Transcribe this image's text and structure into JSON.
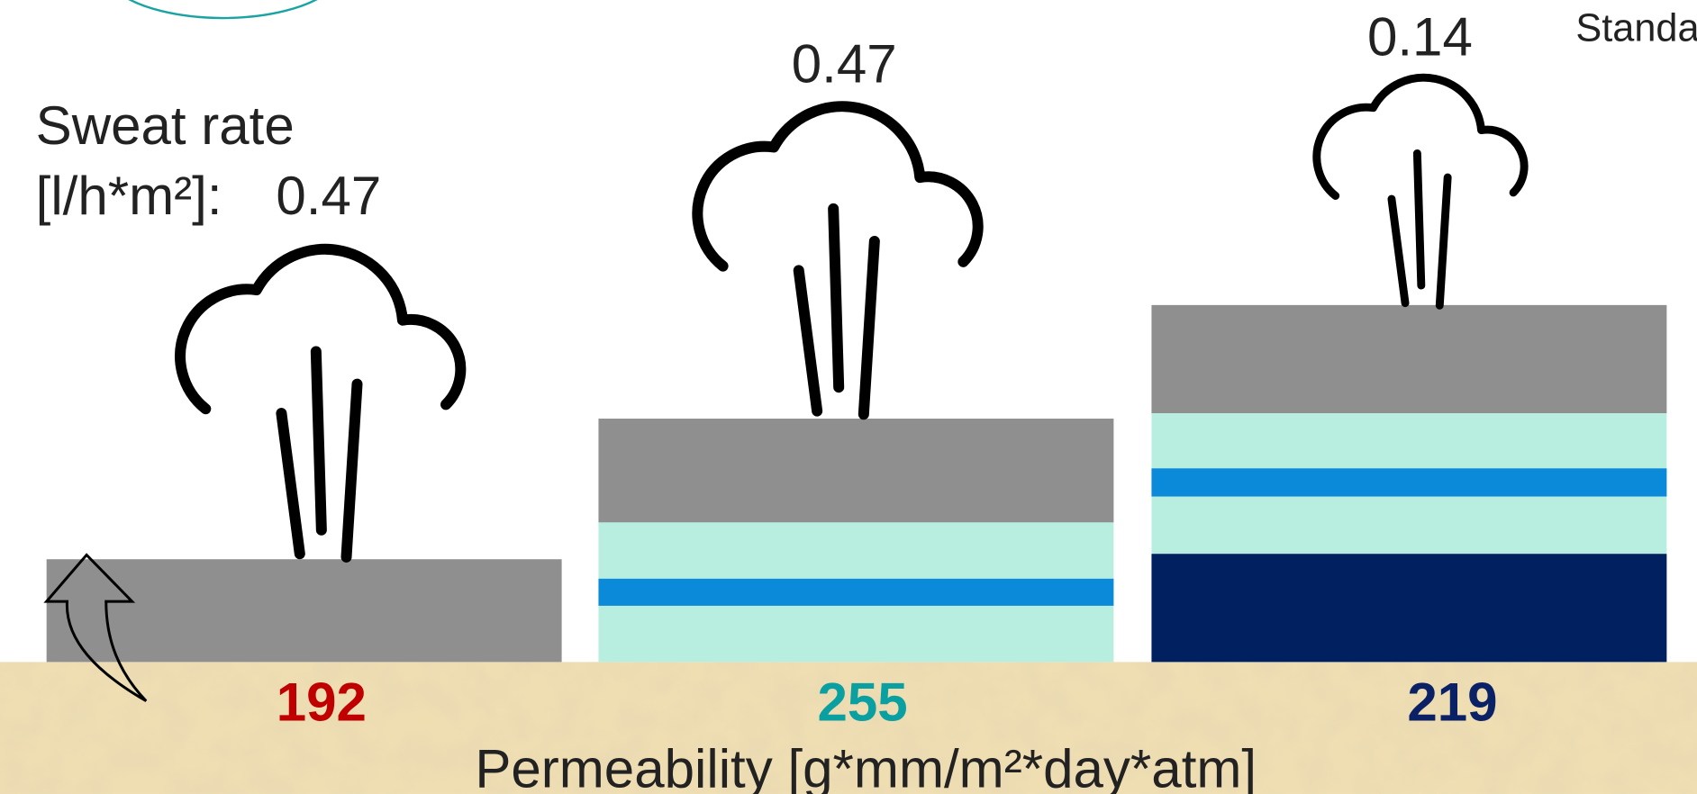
{
  "sweat_rate": {
    "label": "Sweat rate",
    "unit": "[l/h*m²]:"
  },
  "columns": [
    {
      "sweat_value": "0.47",
      "permeability": "192"
    },
    {
      "sweat_value": "0.47",
      "permeability": "255"
    },
    {
      "sweat_value": "0.14",
      "permeability": "219"
    }
  ],
  "axis_label": "Permeability [g*mm/m²*day*atm]",
  "legend_fragment": "Standa"
}
